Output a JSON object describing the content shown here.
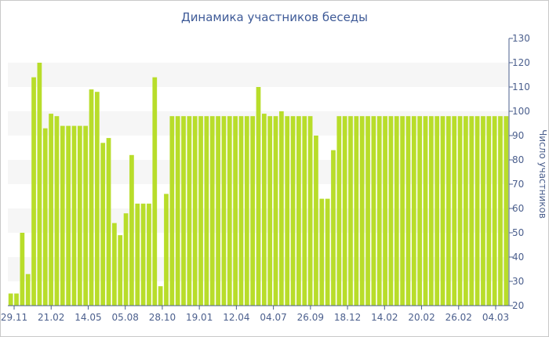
{
  "chart_data": {
    "type": "bar",
    "title": "Динамика участников беседы",
    "ylabel": "Число участников",
    "xlabel": "",
    "ylim": [
      20,
      130
    ],
    "yticks": [
      20,
      30,
      40,
      50,
      60,
      70,
      80,
      90,
      100,
      110,
      120,
      130
    ],
    "xtick_labels": [
      "29.11",
      "21.02",
      "14.05",
      "05.08",
      "28.10",
      "19.01",
      "12.04",
      "04.07",
      "26.09",
      "18.12",
      "14.02",
      "20.02",
      "26.02",
      "04.03"
    ],
    "values": [
      25,
      25,
      50,
      33,
      114,
      120,
      93,
      99,
      98,
      94,
      94,
      94,
      94,
      94,
      109,
      108,
      87,
      89,
      54,
      49,
      58,
      82,
      62,
      62,
      62,
      114,
      28,
      66,
      98,
      98,
      98,
      98,
      98,
      98,
      98,
      98,
      98,
      98,
      98,
      98,
      98,
      98,
      98,
      110,
      99,
      98,
      98,
      100,
      98,
      98,
      98,
      98,
      98,
      90,
      64,
      64,
      84,
      98,
      98,
      98,
      98,
      98,
      98,
      98,
      98,
      98,
      98,
      98,
      98,
      98,
      98,
      98,
      98,
      98,
      98,
      98,
      98,
      98,
      98,
      98,
      98,
      98,
      98,
      98,
      98,
      98,
      98
    ],
    "bar_color": "#b8dd2a",
    "band_color": "#f6f6f6",
    "axis_color": "#4b5f8d",
    "grid": "alternating bands",
    "y_axis_position": "right"
  }
}
